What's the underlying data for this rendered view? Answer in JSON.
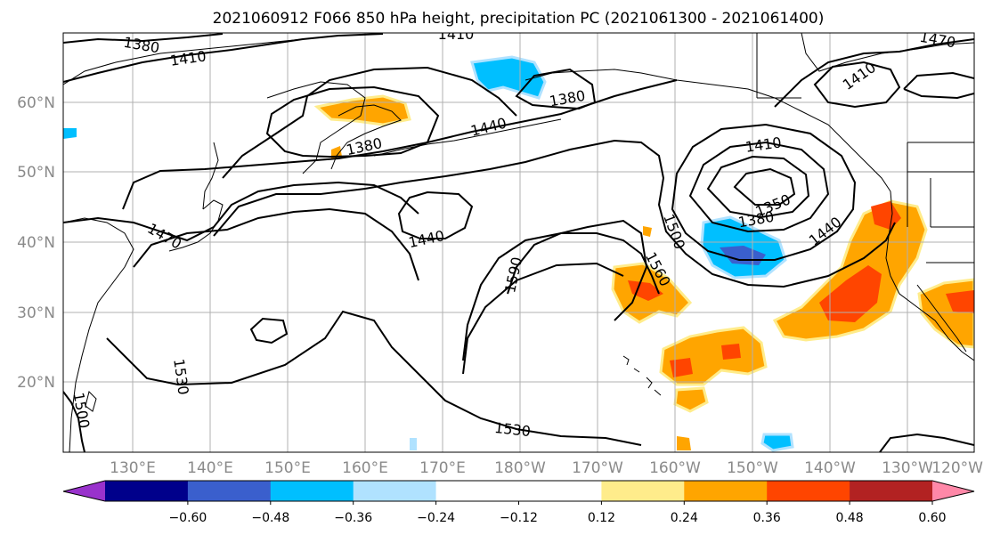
{
  "title": "2021060912 F066 850 hPa height, precipitation PC (2021061300 - 2021061400)",
  "map": {
    "lat_labels": [
      "60°N",
      "50°N",
      "40°N",
      "30°N",
      "20°N"
    ],
    "lon_labels": [
      "130°E",
      "140°E",
      "150°E",
      "160°E",
      "170°E",
      "180°W",
      "170°W",
      "160°W",
      "150°W",
      "140°W",
      "130°W",
      "120°W"
    ],
    "contour_labels": [
      "1380",
      "1410",
      "1410",
      "1380",
      "1380",
      "1440",
      "1470",
      "1440",
      "1410",
      "1380",
      "1350",
      "1440",
      "1500",
      "1560",
      "1590",
      "1530",
      "1530",
      "1500",
      "1470",
      "1410"
    ]
  },
  "colorbar": {
    "ticks": [
      "−0.60",
      "−0.48",
      "−0.36",
      "−0.24",
      "−0.12",
      "0.12",
      "0.24",
      "0.36",
      "0.48",
      "0.60"
    ],
    "colors": [
      "#9932cc",
      "#00008b",
      "#3a5fcd",
      "#00bfff",
      "#b0e2ff",
      "#ffffff",
      "#ffffff",
      "#ffec8b",
      "#ffa500",
      "#ff4500",
      "#b22222",
      "#ff88a8"
    ]
  },
  "shading_colors": {
    "light_blue": "#b0e2ff",
    "blue": "#00bfff",
    "dark_blue": "#3a5fcd",
    "yellow": "#ffec8b",
    "orange": "#ffa500",
    "red_orange": "#ff4500"
  }
}
